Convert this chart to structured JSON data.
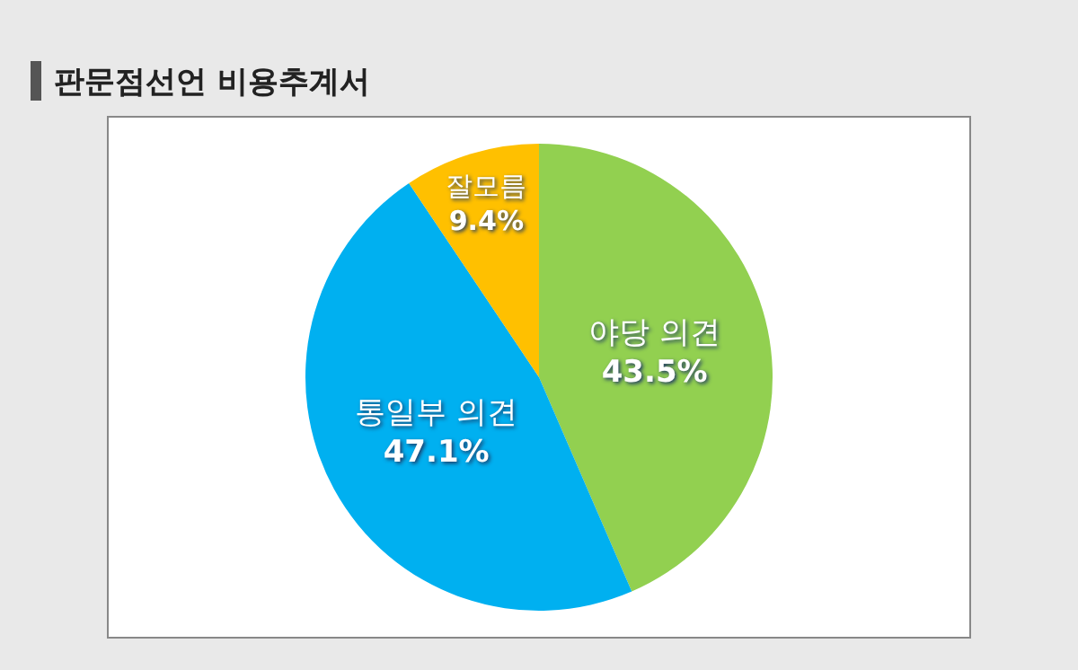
{
  "chart_data": {
    "type": "pie",
    "title": "판문점선언 비용추계서",
    "categories": [
      "야당 의견",
      "통일부 의견",
      "잘모름"
    ],
    "values": [
      43.5,
      47.1,
      9.4
    ],
    "value_labels": [
      "43.5%",
      "47.1%",
      "9.4%"
    ],
    "colors": [
      "#92d050",
      "#00b0f0",
      "#ffc000"
    ],
    "legend": false
  }
}
